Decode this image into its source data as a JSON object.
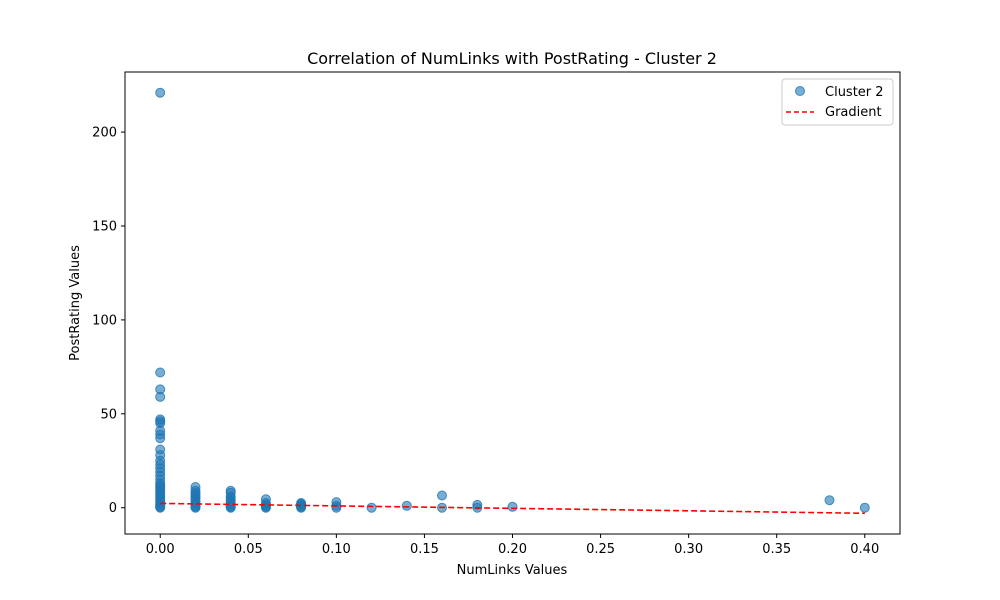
{
  "chart_data": {
    "type": "scatter",
    "title": "Correlation of NumLinks with PostRating - Cluster 2",
    "xlabel": "NumLinks Values",
    "ylabel": "PostRating Values",
    "xlim": [
      -0.02,
      0.42
    ],
    "ylim": [
      -14,
      232
    ],
    "xticks": [
      0.0,
      0.05,
      0.1,
      0.15,
      0.2,
      0.25,
      0.3,
      0.35,
      0.4
    ],
    "xtick_labels": [
      "0.00",
      "0.05",
      "0.10",
      "0.15",
      "0.20",
      "0.25",
      "0.30",
      "0.35",
      "0.40"
    ],
    "yticks": [
      0,
      50,
      100,
      150,
      200
    ],
    "ytick_labels": [
      "0",
      "50",
      "100",
      "150",
      "200"
    ],
    "grid": false,
    "legend_position": "top-right",
    "series": [
      {
        "name": "Cluster 2",
        "kind": "scatter",
        "color": "#1f77b4",
        "points": [
          [
            0.0,
            221
          ],
          [
            0.0,
            72
          ],
          [
            0.0,
            63
          ],
          [
            0.0,
            59
          ],
          [
            0.0,
            47
          ],
          [
            0.0,
            46
          ],
          [
            0.0,
            45
          ],
          [
            0.0,
            41
          ],
          [
            0.0,
            39
          ],
          [
            0.0,
            37
          ],
          [
            0.0,
            31
          ],
          [
            0.0,
            28
          ],
          [
            0.0,
            25
          ],
          [
            0.0,
            23
          ],
          [
            0.0,
            21
          ],
          [
            0.0,
            19
          ],
          [
            0.0,
            17
          ],
          [
            0.0,
            15
          ],
          [
            0.0,
            13
          ],
          [
            0.0,
            12
          ],
          [
            0.0,
            11
          ],
          [
            0.0,
            10
          ],
          [
            0.0,
            9
          ],
          [
            0.0,
            8
          ],
          [
            0.0,
            7
          ],
          [
            0.0,
            6
          ],
          [
            0.0,
            5
          ],
          [
            0.0,
            4
          ],
          [
            0.0,
            3
          ],
          [
            0.0,
            2
          ],
          [
            0.0,
            1
          ],
          [
            0.0,
            0.5
          ],
          [
            0.0,
            0
          ],
          [
            0.02,
            11
          ],
          [
            0.02,
            9
          ],
          [
            0.02,
            8
          ],
          [
            0.02,
            7
          ],
          [
            0.02,
            6
          ],
          [
            0.02,
            5
          ],
          [
            0.02,
            4
          ],
          [
            0.02,
            3
          ],
          [
            0.02,
            2
          ],
          [
            0.02,
            1
          ],
          [
            0.02,
            0.5
          ],
          [
            0.02,
            0
          ],
          [
            0.04,
            9
          ],
          [
            0.04,
            8
          ],
          [
            0.04,
            6
          ],
          [
            0.04,
            5
          ],
          [
            0.04,
            4
          ],
          [
            0.04,
            3
          ],
          [
            0.04,
            2
          ],
          [
            0.04,
            1
          ],
          [
            0.04,
            0.5
          ],
          [
            0.04,
            0
          ],
          [
            0.06,
            4.5
          ],
          [
            0.06,
            2.5
          ],
          [
            0.06,
            1.5
          ],
          [
            0.06,
            1
          ],
          [
            0.06,
            0.5
          ],
          [
            0.06,
            0
          ],
          [
            0.08,
            2.5
          ],
          [
            0.08,
            2
          ],
          [
            0.08,
            1.5
          ],
          [
            0.08,
            1
          ],
          [
            0.08,
            0.5
          ],
          [
            0.08,
            0
          ],
          [
            0.1,
            3
          ],
          [
            0.1,
            1
          ],
          [
            0.1,
            0
          ],
          [
            0.12,
            0
          ],
          [
            0.14,
            1
          ],
          [
            0.16,
            6.5
          ],
          [
            0.16,
            0
          ],
          [
            0.18,
            1.5
          ],
          [
            0.18,
            0
          ],
          [
            0.2,
            0.5
          ],
          [
            0.38,
            4
          ],
          [
            0.4,
            0
          ]
        ]
      },
      {
        "name": "Gradient",
        "kind": "line",
        "style": "dashed",
        "color": "#ff0000",
        "points": [
          [
            0.0,
            2.3
          ],
          [
            0.4,
            -3.0
          ]
        ]
      }
    ]
  }
}
